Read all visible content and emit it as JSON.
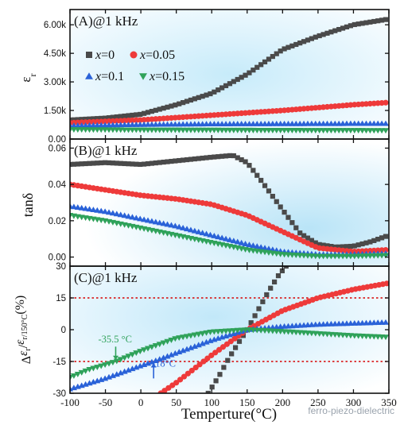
{
  "colors": {
    "x0": "#4a4a4a",
    "x005": "#ee3a3a",
    "x01": "#2a62d8",
    "x015": "#2fa25a",
    "ref_line": "#d80000",
    "panel_glow": "#9fd8f2"
  },
  "legend": {
    "items": [
      {
        "var": "x",
        "val": "=0"
      },
      {
        "var": "x",
        "val": "=0.05"
      },
      {
        "var": "x",
        "val": "=0.1"
      },
      {
        "var": "x",
        "val": "=0.15"
      }
    ]
  },
  "watermark": "ferro-piezo-dielectric",
  "chart_data": [
    {
      "type": "scatter",
      "panel_label": "(A)@1 kHz",
      "ylabel": "εr",
      "xlim": [
        -100,
        350
      ],
      "ylim": [
        0,
        6800
      ],
      "yticks": [
        0,
        1500,
        3000,
        4500,
        6000
      ],
      "ytick_labels": [
        "0.00",
        "1.50k",
        "3.00k",
        "4.50k",
        "6.00k"
      ],
      "series": [
        {
          "name": "x=0",
          "marker": "square",
          "points": [
            [
              -100,
              1000
            ],
            [
              -50,
              1100
            ],
            [
              0,
              1300
            ],
            [
              50,
              1800
            ],
            [
              100,
              2400
            ],
            [
              150,
              3400
            ],
            [
              200,
              4700
            ],
            [
              250,
              5400
            ],
            [
              300,
              6000
            ],
            [
              350,
              6300
            ]
          ]
        },
        {
          "name": "x=0.05",
          "marker": "circle",
          "points": [
            [
              -100,
              850
            ],
            [
              0,
              1000
            ],
            [
              100,
              1250
            ],
            [
              200,
              1500
            ],
            [
              250,
              1650
            ],
            [
              300,
              1800
            ],
            [
              350,
              1920
            ]
          ]
        },
        {
          "name": "x=0.1",
          "marker": "triangle-up",
          "points": [
            [
              -100,
              700
            ],
            [
              0,
              760
            ],
            [
              100,
              790
            ],
            [
              200,
              800
            ],
            [
              300,
              810
            ],
            [
              350,
              810
            ]
          ]
        },
        {
          "name": "x=0.15",
          "marker": "triangle-down",
          "points": [
            [
              -100,
              500
            ],
            [
              0,
              480
            ],
            [
              100,
              470
            ],
            [
              200,
              460
            ],
            [
              300,
              455
            ],
            [
              350,
              450
            ]
          ]
        }
      ]
    },
    {
      "type": "scatter",
      "panel_label": "(B)@1 kHz",
      "ylabel": "tanδ",
      "xlim": [
        -100,
        350
      ],
      "ylim": [
        -0.005,
        0.065
      ],
      "yticks": [
        0,
        0.02,
        0.04,
        0.06
      ],
      "ytick_labels": [
        "0.00",
        "0.02",
        "0.04",
        "0.06"
      ],
      "series": [
        {
          "name": "x=0",
          "marker": "square",
          "points": [
            [
              -100,
              0.051
            ],
            [
              -50,
              0.052
            ],
            [
              0,
              0.051
            ],
            [
              50,
              0.053
            ],
            [
              100,
              0.055
            ],
            [
              130,
              0.056
            ],
            [
              150,
              0.052
            ],
            [
              170,
              0.042
            ],
            [
              200,
              0.026
            ],
            [
              225,
              0.013
            ],
            [
              250,
              0.007
            ],
            [
              275,
              0.0055
            ],
            [
              300,
              0.006
            ],
            [
              325,
              0.0085
            ],
            [
              350,
              0.012
            ]
          ]
        },
        {
          "name": "x=0.05",
          "marker": "circle",
          "points": [
            [
              -100,
              0.04
            ],
            [
              -50,
              0.037
            ],
            [
              0,
              0.034
            ],
            [
              50,
              0.032
            ],
            [
              100,
              0.029
            ],
            [
              150,
              0.023
            ],
            [
              200,
              0.014
            ],
            [
              250,
              0.005
            ],
            [
              300,
              0.003
            ],
            [
              350,
              0.004
            ]
          ]
        },
        {
          "name": "x=0.1",
          "marker": "triangle-up",
          "points": [
            [
              -100,
              0.028
            ],
            [
              -50,
              0.025
            ],
            [
              0,
              0.021
            ],
            [
              50,
              0.017
            ],
            [
              100,
              0.012
            ],
            [
              150,
              0.007
            ],
            [
              200,
              0.003
            ],
            [
              250,
              0.0015
            ],
            [
              300,
              0.0015
            ],
            [
              350,
              0.002
            ]
          ]
        },
        {
          "name": "x=0.15",
          "marker": "triangle-down",
          "points": [
            [
              -100,
              0.023
            ],
            [
              -50,
              0.02
            ],
            [
              0,
              0.016
            ],
            [
              50,
              0.012
            ],
            [
              100,
              0.008
            ],
            [
              150,
              0.004
            ],
            [
              200,
              0.0015
            ],
            [
              250,
              0.0005
            ],
            [
              300,
              0.0005
            ],
            [
              350,
              0.001
            ]
          ]
        }
      ]
    },
    {
      "type": "scatter",
      "panel_label": "(C)@1 kHz",
      "ylabel": "Δεr/εr/150°C(%)",
      "xlabel": "Temperture(°C)",
      "xlim": [
        -100,
        350
      ],
      "ylim": [
        -30,
        30
      ],
      "yticks": [
        -30,
        -15,
        0,
        15,
        30
      ],
      "ytick_labels": [
        "-30",
        "-15",
        "0",
        "15",
        "30"
      ],
      "xticks": [
        -100,
        -50,
        0,
        50,
        100,
        150,
        200,
        250,
        300,
        350
      ],
      "xtick_labels": [
        "-100",
        "-50",
        "0",
        "50",
        "100",
        "150",
        "200",
        "250",
        "300",
        "350"
      ],
      "ref_lines": [
        15,
        -15
      ],
      "annotations": [
        {
          "text": "-35.5 °C",
          "x": -35.5,
          "color": "#2fa25a"
        },
        {
          "text": "18°C",
          "x": 18,
          "color": "#2a62d8"
        }
      ],
      "series": [
        {
          "name": "x=0",
          "marker": "square",
          "points": [
            [
              95,
              -30
            ],
            [
              110,
              -22
            ],
            [
              125,
              -13
            ],
            [
              140,
              -5
            ],
            [
              150,
              0
            ],
            [
              165,
              9
            ],
            [
              180,
              18
            ],
            [
              195,
              26
            ],
            [
              205,
              30
            ]
          ]
        },
        {
          "name": "x=0.05",
          "marker": "circle",
          "points": [
            [
              28,
              -30
            ],
            [
              50,
              -25
            ],
            [
              100,
              -12
            ],
            [
              150,
              0
            ],
            [
              200,
              9
            ],
            [
              250,
              15
            ],
            [
              300,
              19
            ],
            [
              350,
              22
            ]
          ]
        },
        {
          "name": "x=0.1",
          "marker": "triangle-up",
          "points": [
            [
              -100,
              -28
            ],
            [
              -50,
              -23
            ],
            [
              0,
              -17
            ],
            [
              18,
              -15
            ],
            [
              50,
              -11
            ],
            [
              100,
              -5
            ],
            [
              150,
              0
            ],
            [
              200,
              1.5
            ],
            [
              250,
              2.5
            ],
            [
              300,
              3
            ],
            [
              350,
              3.5
            ]
          ]
        },
        {
          "name": "x=0.15",
          "marker": "triangle-down",
          "points": [
            [
              -100,
              -22.5
            ],
            [
              -75,
              -19
            ],
            [
              -35.5,
              -15
            ],
            [
              0,
              -10
            ],
            [
              50,
              -4
            ],
            [
              100,
              -1
            ],
            [
              150,
              0
            ],
            [
              200,
              -0.8
            ],
            [
              250,
              -1.8
            ],
            [
              300,
              -2.8
            ],
            [
              350,
              -3.5
            ]
          ]
        }
      ]
    }
  ]
}
